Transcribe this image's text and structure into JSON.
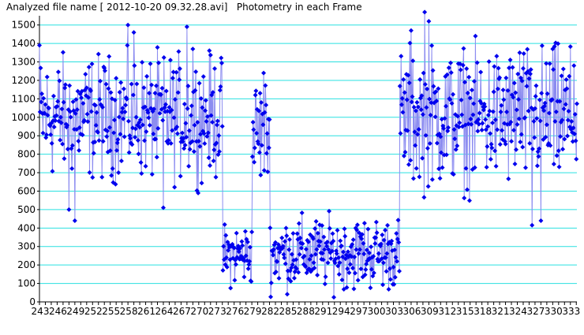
{
  "header": {
    "title": "Analyzed file name [ 2012-10-20 09.32.28.avi]   Photometry in each Frame"
  },
  "chart_data": {
    "type": "line",
    "title": "Analyzed file name [ 2012-10-20 09.32.28.avi]   Photometry in each Frame",
    "xlabel": "",
    "ylabel": "",
    "ylim": [
      0,
      1550
    ],
    "yticks": [
      0,
      100,
      200,
      300,
      400,
      500,
      600,
      700,
      800,
      900,
      1000,
      1100,
      1200,
      1300,
      1400,
      1500
    ],
    "grid": true,
    "grid_color": "#29e0e0",
    "series_color": "#0000ee",
    "line_color": "#8c8cf0",
    "x_tick_labels": [
      "243",
      "246",
      "249",
      "252",
      "255",
      "258",
      "261",
      "264",
      "267",
      "270",
      "273",
      "276",
      "279",
      "282",
      "285",
      "288",
      "291",
      "294",
      "297",
      "300",
      "303",
      "306",
      "309",
      "312",
      "315",
      "318",
      "321",
      "324",
      "327",
      "330",
      "333"
    ],
    "x_range": [
      2430,
      3341
    ],
    "segments": [
      {
        "from": 2430,
        "to": 2740,
        "low": 650,
        "high": 1350
      },
      {
        "from": 2740,
        "to": 2790,
        "low": 80,
        "high": 430
      },
      {
        "from": 2790,
        "to": 2820,
        "low": 600,
        "high": 1240
      },
      {
        "from": 2820,
        "to": 3040,
        "low": 60,
        "high": 470
      },
      {
        "from": 3040,
        "to": 3341,
        "low": 600,
        "high": 1400
      }
    ],
    "peaks": [
      {
        "x": 2430,
        "y": 1390
      },
      {
        "x": 2580,
        "y": 1500
      },
      {
        "x": 2590,
        "y": 1460
      },
      {
        "x": 2680,
        "y": 1490
      },
      {
        "x": 2690,
        "y": 1370
      },
      {
        "x": 3083,
        "y": 1570
      },
      {
        "x": 3090,
        "y": 1520
      },
      {
        "x": 3060,
        "y": 1470
      },
      {
        "x": 2490,
        "y": 440
      },
      {
        "x": 2480,
        "y": 500
      },
      {
        "x": 2640,
        "y": 510
      },
      {
        "x": 3244,
        "y": 1350
      },
      {
        "x": 3300,
        "y": 1370
      },
      {
        "x": 3280,
        "y": 440
      },
      {
        "x": 3265,
        "y": 415
      },
      {
        "x": 3336,
        "y": 1280
      },
      {
        "x": 2810,
        "y": 1240
      }
    ]
  }
}
